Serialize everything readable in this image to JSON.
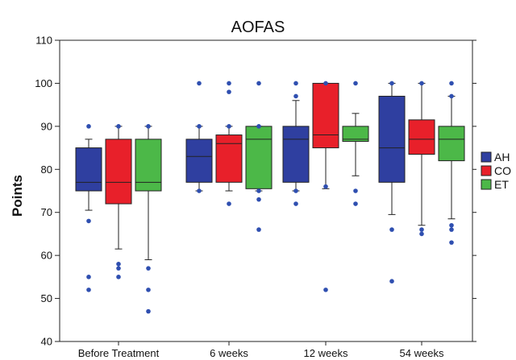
{
  "chart_data": {
    "type": "boxplot",
    "title": "AOFAS",
    "xlabel": "",
    "ylabel": "Points",
    "ylim": [
      40,
      110
    ],
    "yticks": [
      40,
      50,
      60,
      70,
      80,
      90,
      100,
      110
    ],
    "grid": false,
    "legend_position": "right",
    "categories": [
      "Before Treatment",
      "6 weeks",
      "12 weeks",
      "54 weeks"
    ],
    "series": [
      {
        "name": "AH",
        "color": "#2f3fa0",
        "boxes": [
          {
            "whisker_low": 70.5,
            "q1": 75,
            "median": 77,
            "q3": 85,
            "whisker_high": 87,
            "outliers": [
              90,
              68,
              55,
              52
            ]
          },
          {
            "whisker_low": 75,
            "q1": 77,
            "median": 83,
            "q3": 87,
            "whisker_high": 90,
            "outliers": [
              100,
              90,
              75
            ]
          },
          {
            "whisker_low": 75,
            "q1": 77,
            "median": 87,
            "q3": 90,
            "whisker_high": 96,
            "outliers": [
              100,
              97,
              75,
              72
            ]
          },
          {
            "whisker_low": 69.5,
            "q1": 77,
            "median": 85,
            "q3": 97,
            "whisker_high": 100,
            "outliers": [
              100,
              66,
              54
            ]
          }
        ]
      },
      {
        "name": "CO",
        "color": "#e8202a",
        "boxes": [
          {
            "whisker_low": 61.5,
            "q1": 72,
            "median": 77,
            "q3": 87,
            "whisker_high": 90,
            "outliers": [
              90,
              58,
              57,
              55
            ]
          },
          {
            "whisker_low": 75,
            "q1": 77,
            "median": 86,
            "q3": 88,
            "whisker_high": 90,
            "outliers": [
              100,
              98,
              90,
              72
            ]
          },
          {
            "whisker_low": 75.5,
            "q1": 85,
            "median": 88,
            "q3": 100,
            "whisker_high": 100,
            "outliers": [
              100,
              76,
              52
            ]
          },
          {
            "whisker_low": 67,
            "q1": 83.5,
            "median": 87,
            "q3": 91.5,
            "whisker_high": 100,
            "outliers": [
              100,
              66,
              65
            ]
          }
        ]
      },
      {
        "name": "ET",
        "color": "#4cb848",
        "boxes": [
          {
            "whisker_low": 59,
            "q1": 75,
            "median": 77,
            "q3": 87,
            "whisker_high": 90,
            "outliers": [
              90,
              57,
              52,
              47
            ]
          },
          {
            "whisker_low": 75,
            "q1": 75.5,
            "median": 87,
            "q3": 90,
            "whisker_high": 90,
            "outliers": [
              100,
              90,
              75,
              73,
              66
            ]
          },
          {
            "whisker_low": 78.5,
            "q1": 86.5,
            "median": 87,
            "q3": 90,
            "whisker_high": 93,
            "outliers": [
              100,
              75,
              72
            ]
          },
          {
            "whisker_low": 68.5,
            "q1": 82,
            "median": 87,
            "q3": 90,
            "whisker_high": 97,
            "outliers": [
              100,
              97,
              67,
              66,
              63
            ]
          }
        ]
      }
    ],
    "outlier_color": "#2f4fb0"
  }
}
